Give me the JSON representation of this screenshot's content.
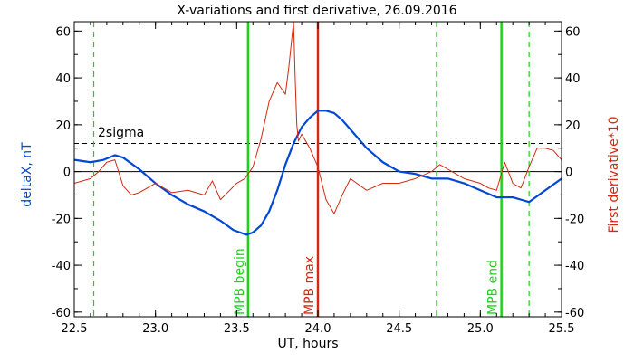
{
  "chart_data": {
    "type": "line",
    "title": "X-variations and first derivative, 26.09.2016",
    "xlabel": "UT, hours",
    "ylabel_left": "deltaX, nT",
    "ylabel_right": "First derivative*10",
    "xlim": [
      22.5,
      25.5
    ],
    "ylim": [
      -62,
      64
    ],
    "xticks": [
      "22.5",
      "23.0",
      "23.5",
      "24.0",
      "24.5",
      "25.0",
      "25.5"
    ],
    "yticks": [
      "-60",
      "-40",
      "-20",
      "0",
      "20",
      "40",
      "60"
    ],
    "grid": false,
    "colors": {
      "deltaX": "#0047d6",
      "derivative": "#d22a10",
      "mpb_lines": "#19d419",
      "dashed_green": "#19d419",
      "max_line": "#d22a10",
      "sigma_line": "#000000"
    },
    "threshold": {
      "label": "2sigma",
      "value": 12
    },
    "vertical_markers": [
      {
        "label": "MPB begin",
        "x": 23.57,
        "style": "solid",
        "color": "#19d419"
      },
      {
        "label": "MPB max",
        "x": 24.0,
        "style": "solid",
        "color": "#d22a10"
      },
      {
        "label": "MPB end",
        "x": 25.13,
        "style": "solid",
        "color": "#19d419"
      }
    ],
    "dashed_verticals": [
      22.62,
      24.73,
      25.3
    ],
    "series": [
      {
        "axis": "left",
        "x": [
          22.5,
          22.6,
          22.68,
          22.75,
          22.8,
          22.9,
          23.0,
          23.1,
          23.2,
          23.3,
          23.4,
          23.48,
          23.56,
          23.6,
          23.65,
          23.7,
          23.75,
          23.8,
          23.85,
          23.9,
          23.95,
          24.0,
          24.05,
          24.1,
          24.15,
          24.2,
          24.3,
          24.4,
          24.5,
          24.6,
          24.7,
          24.8,
          24.9,
          25.0,
          25.1,
          25.15,
          25.2,
          25.25,
          25.3,
          25.4,
          25.5
        ],
        "values": [
          5,
          4,
          5,
          7,
          6,
          1,
          -5,
          -10,
          -14,
          -17,
          -21,
          -25,
          -27,
          -26,
          -23,
          -17,
          -8,
          3,
          12,
          19,
          23,
          26,
          26,
          25,
          22,
          18,
          10,
          4,
          0,
          -1,
          -3,
          -3,
          -5,
          -8,
          -11,
          -11,
          -11,
          -12,
          -13,
          -8,
          -3
        ]
      },
      {
        "axis": "right",
        "x": [
          22.5,
          22.6,
          22.65,
          22.7,
          22.75,
          22.8,
          22.85,
          22.9,
          23.0,
          23.1,
          23.2,
          23.3,
          23.35,
          23.4,
          23.5,
          23.55,
          23.6,
          23.65,
          23.7,
          23.75,
          23.8,
          23.82,
          23.85,
          23.86,
          23.87,
          23.88,
          23.9,
          23.95,
          24.0,
          24.05,
          24.1,
          24.15,
          24.2,
          24.3,
          24.4,
          24.5,
          24.6,
          24.7,
          24.75,
          24.8,
          24.9,
          25.0,
          25.05,
          25.1,
          25.15,
          25.2,
          25.25,
          25.3,
          25.35,
          25.4,
          25.45,
          25.5
        ],
        "values": [
          -5,
          -3,
          0,
          4,
          5,
          -6,
          -10,
          -9,
          -5,
          -9,
          -8,
          -10,
          -4,
          -12,
          -5,
          -3,
          2,
          14,
          30,
          38,
          33,
          44,
          65,
          40,
          20,
          13,
          16,
          10,
          2,
          -12,
          -18,
          -10,
          -3,
          -8,
          -5,
          -5,
          -3,
          0,
          3,
          1,
          -3,
          -5,
          -7,
          -8,
          4,
          -5,
          -7,
          2,
          10,
          10,
          9,
          5
        ]
      }
    ]
  }
}
